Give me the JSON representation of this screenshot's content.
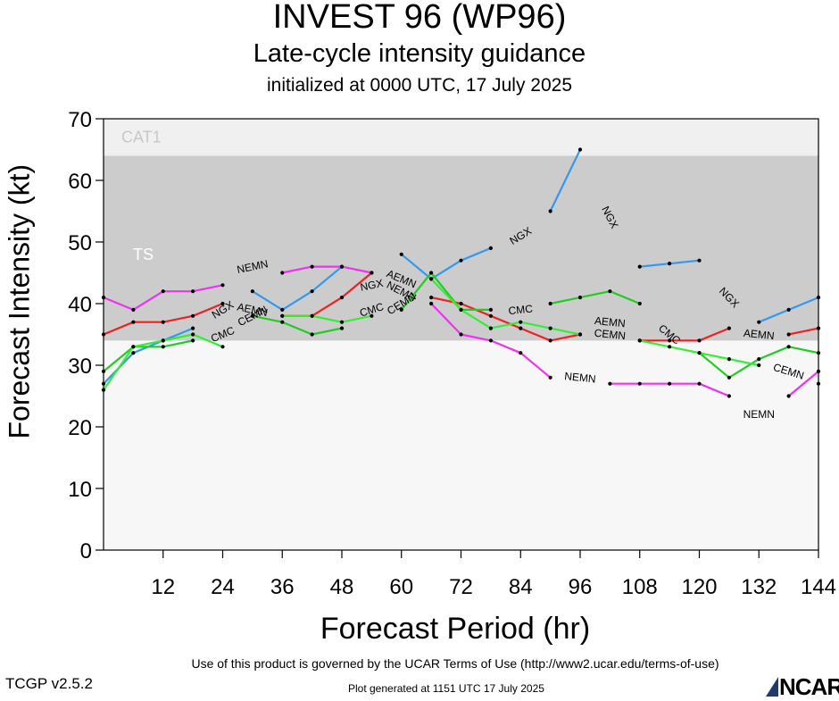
{
  "chart_data": {
    "type": "line",
    "title": "INVEST 96 (WP96)",
    "subtitle": "Late-cycle intensity guidance",
    "initialized": "initialized at 0000 UTC, 17 July 2025",
    "xlabel": "Forecast Period (hr)",
    "ylabel": "Forecast Intensity (kt)",
    "xlim": [
      0,
      144
    ],
    "ylim": [
      0,
      70
    ],
    "x_ticks": [
      12,
      24,
      36,
      48,
      60,
      72,
      84,
      96,
      108,
      120,
      132,
      144
    ],
    "y_ticks": [
      0,
      10,
      20,
      30,
      40,
      50,
      60,
      70
    ],
    "bands": [
      {
        "label": "TS",
        "from": 34,
        "to": 64,
        "color": "#cccccc"
      },
      {
        "label": "CAT1",
        "from": 64,
        "to": 70,
        "color": "#f0f0f0"
      }
    ],
    "series": [
      {
        "name": "NGX",
        "color": "#3399ee",
        "x": [
          0,
          6,
          12,
          18,
          24,
          30,
          36,
          42,
          48,
          54,
          60,
          66,
          72,
          78,
          84,
          90,
          96,
          102,
          108,
          114,
          120,
          126,
          132,
          138,
          144
        ],
        "y": [
          27,
          32,
          34,
          36,
          39,
          42,
          39,
          42,
          46,
          43,
          48,
          44,
          47,
          49,
          51,
          55,
          65,
          54,
          46,
          46.5,
          47,
          41,
          37,
          39,
          41
        ],
        "labels_at": [
          24,
          54,
          84,
          102,
          126
        ]
      },
      {
        "name": "NEMN",
        "color": "#ee33ee",
        "x": [
          0,
          6,
          12,
          18,
          24,
          30,
          36,
          42,
          48,
          54,
          60,
          66,
          72,
          78,
          84,
          90,
          96,
          102,
          108,
          114,
          120,
          126,
          132,
          138,
          144
        ],
        "y": [
          41,
          39,
          42,
          42,
          43,
          46,
          45,
          46,
          46,
          45,
          42,
          40,
          35,
          34,
          32,
          28,
          28,
          27,
          27,
          27,
          27,
          25,
          22,
          25,
          29
        ],
        "labels_at": [
          30,
          60,
          96,
          132
        ]
      },
      {
        "name": "AEMN",
        "color": "#ee2222",
        "x": [
          0,
          6,
          12,
          18,
          24,
          30,
          36,
          42,
          48,
          54,
          60,
          66,
          72,
          78,
          84,
          90,
          96,
          102,
          108,
          114,
          120,
          126,
          132,
          138,
          144
        ],
        "y": [
          35,
          37,
          37,
          38,
          40,
          39,
          38,
          38,
          41,
          45,
          44,
          41,
          40,
          38,
          36,
          34,
          35,
          37,
          34,
          34,
          34,
          36,
          35,
          35,
          36
        ],
        "labels_at": [
          30,
          60,
          102,
          132
        ]
      },
      {
        "name": "CMC",
        "color": "#22cc22",
        "x": [
          0,
          6,
          12,
          18,
          24,
          30,
          36,
          42,
          48,
          54,
          60,
          66,
          72,
          78,
          84,
          90,
          96,
          102,
          108,
          114,
          120,
          126,
          132,
          138,
          144
        ],
        "y": [
          29,
          33,
          33,
          34,
          35,
          38,
          37,
          35,
          36,
          39,
          39,
          45,
          39,
          39,
          39,
          40,
          41,
          42,
          40,
          35,
          32,
          28,
          31,
          33,
          32
        ],
        "labels_at": [
          24,
          54,
          84,
          114
        ]
      },
      {
        "name": "CEMN",
        "color": "#33ee33",
        "x": [
          0,
          6,
          12,
          18,
          24,
          30,
          36,
          42,
          48,
          54,
          60,
          66,
          72,
          78,
          84,
          90,
          96,
          102,
          108,
          114,
          120,
          126,
          132,
          138,
          144
        ],
        "y": [
          26,
          33,
          34,
          35,
          33,
          38,
          38,
          38,
          37,
          38,
          40,
          44,
          39,
          36,
          37,
          36,
          35,
          35,
          34,
          33,
          32,
          31,
          30,
          29,
          27
        ],
        "labels_at": [
          30,
          60,
          102,
          138
        ]
      }
    ]
  },
  "footer": {
    "terms": "Use of this product is governed by the UCAR Terms of Use (http://www2.ucar.edu/terms-of-use)",
    "version": "TCGP v2.5.2",
    "generated": "Plot generated at 1151 UTC   17 July 2025",
    "logo": "NCAR"
  }
}
